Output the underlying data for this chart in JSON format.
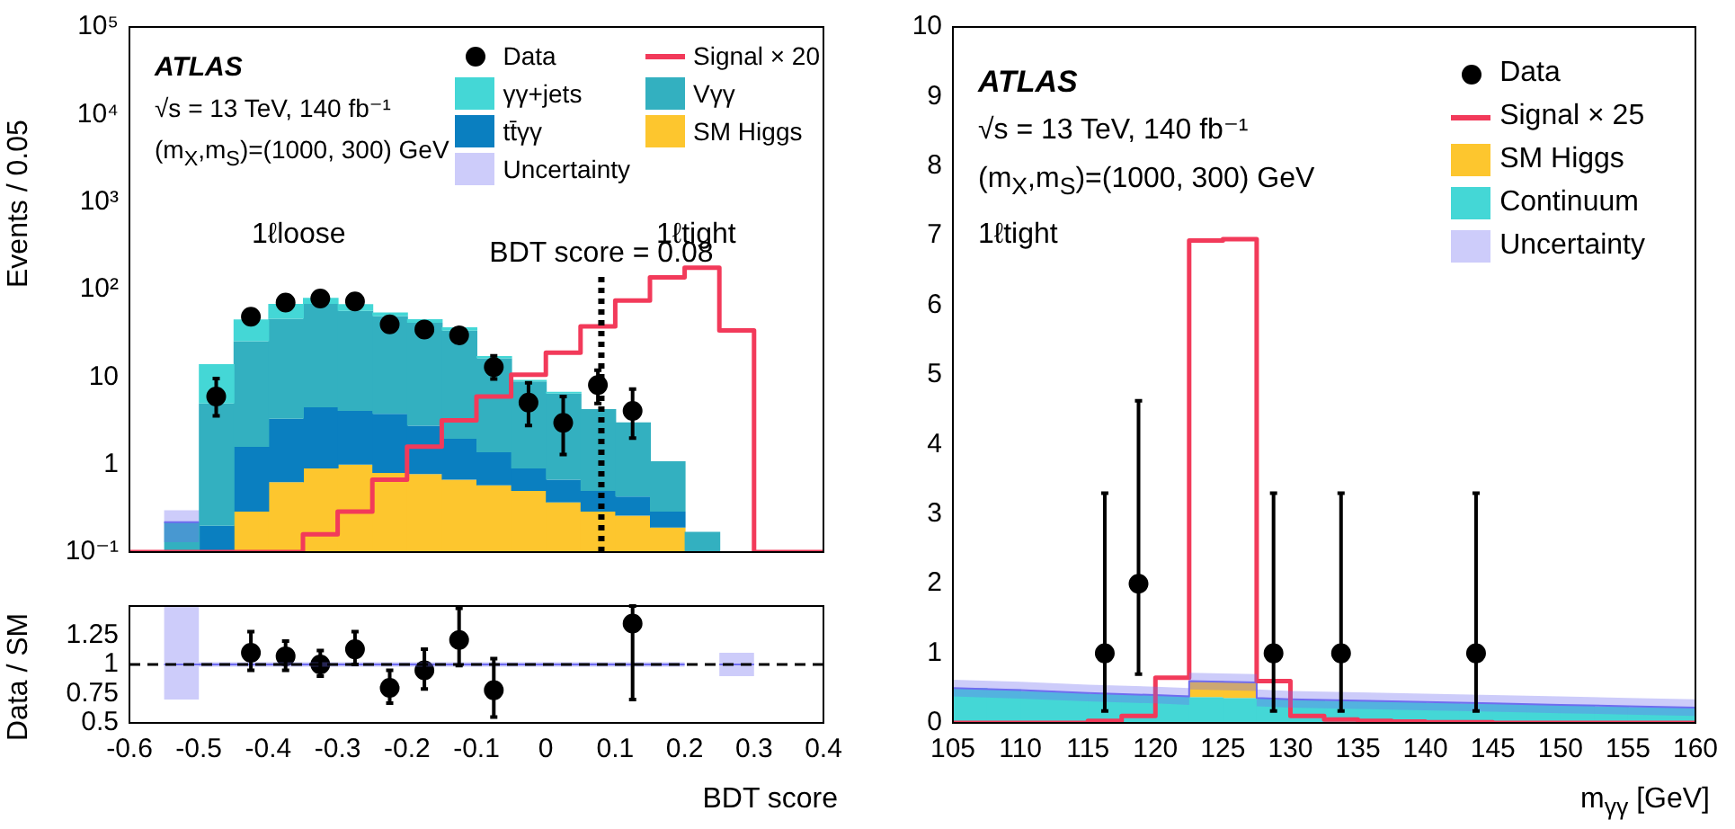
{
  "chart_data": [
    {
      "type": "bar",
      "x": [
        -0.525,
        -0.475,
        -0.425,
        -0.375,
        -0.325,
        -0.275,
        -0.225,
        -0.175,
        -0.125,
        -0.075,
        -0.025,
        0.025,
        0.075,
        0.125,
        0.175,
        0.225
      ],
      "stacked": true,
      "log": "y",
      "grid": false,
      "legend": "top right",
      "tick_labels": "y",
      "ylabel": "Events / 0.05",
      "xlim": [
        -0.6,
        0.4
      ],
      "xticks": [
        -0.6,
        -0.5,
        -0.4,
        -0.3,
        -0.2,
        -0.1,
        0,
        0.1,
        0.2,
        0.3,
        0.4
      ],
      "ylim": [
        0.1,
        100000
      ],
      "yticks": [
        {
          "value": 0.1,
          "label": "10⁻¹"
        },
        1,
        10,
        {
          "value": 100,
          "label": "10²"
        },
        {
          "value": 1000,
          "label": "10³"
        },
        {
          "value": 10000,
          "label": "10⁴"
        },
        {
          "value": 100000,
          "label": "10⁵"
        }
      ],
      "series": [
        {
          "name": "SM Higgs",
          "color": "#fdc62e",
          "values": [
            null,
            null,
            0.29,
            0.63,
            0.9,
            1.0,
            0.8,
            0.78,
            0.67,
            0.58,
            0.5,
            0.37,
            0.29,
            0.26,
            0.19,
            null
          ]
        },
        {
          "name": "tt̄γγ",
          "color": "#0a7fc0",
          "values": [
            null,
            0.2,
            1.3,
            2.7,
            3.6,
            3.1,
            3.0,
            2.0,
            1.3,
            0.8,
            0.4,
            0.3,
            0.21,
            0.17,
            0.1,
            null
          ]
        },
        {
          "name": "Vγγ",
          "color": "#33b0c0",
          "values": [
            0.22,
            4.8,
            24,
            43,
            64,
            53,
            46,
            39,
            32,
            15,
            8,
            5.8,
            3.8,
            2.6,
            0.8,
            0.17
          ]
        },
        {
          "name": "γγ+jets",
          "color": "#44d7d6",
          "values": [
            null,
            9,
            20,
            22,
            12,
            11,
            5,
            4,
            3,
            1,
            0.4,
            0.3,
            null,
            null,
            null,
            null
          ]
        },
        {
          "name": "Signal × 20",
          "type": "step",
          "color": "#f23a5a",
          "x": [
            -0.6,
            -0.55,
            -0.5,
            -0.45,
            -0.4,
            -0.35,
            -0.3,
            -0.25,
            -0.2,
            -0.15,
            -0.1,
            -0.05,
            0,
            0.05,
            0.1,
            0.15,
            0.2,
            0.25,
            0.3,
            0.35,
            0.4
          ],
          "values": [
            0.1,
            0.1,
            0.1,
            0.1,
            0.1,
            0.16,
            0.29,
            0.67,
            1.6,
            3.2,
            6.0,
            10.6,
            19,
            38,
            75,
            138,
            177,
            34,
            0.1,
            0.1,
            0.1
          ]
        },
        {
          "name": "Data",
          "type": "scatter",
          "marker": "circle",
          "color": "#000000",
          "x": [
            -0.475,
            -0.425,
            -0.375,
            -0.325,
            -0.275,
            -0.225,
            -0.175,
            -0.125,
            -0.075,
            -0.025,
            0.025,
            0.075,
            0.125
          ],
          "values": [
            6,
            49,
            71,
            79,
            73,
            40,
            35,
            30,
            13,
            5.1,
            3.0,
            8.1,
            4.1
          ],
          "errors": [
            [
              3.6,
              9.6
            ],
            null,
            null,
            null,
            null,
            null,
            null,
            null,
            [
              9.5,
              17.5
            ],
            [
              2.8,
              8.6
            ],
            [
              1.3,
              6.0
            ],
            [
              5.0,
              12
            ],
            [
              2.0,
              7.3
            ]
          ]
        },
        {
          "name": "Uncertainty",
          "type": "line",
          "color": "#6f6cf0",
          "x": [
            -0.55,
            -0.5
          ],
          "values": [
            0.22,
            0.22
          ],
          "lower": [
            0.13,
            0.13
          ],
          "upper": [
            0.3,
            0.3
          ]
        }
      ],
      "ref_lines": [
        {
          "axis": "x",
          "value": 0.08,
          "label": "BDT score = 0.08",
          "line_style": "dotted",
          "color": "#000000"
        }
      ],
      "annotations": [
        "ATLAS",
        "√s = 13 TeV, 140 fb⁻¹",
        "(m$_{X}$,m$_{S}$)=(1000, 300) GeV",
        "1ℓloose",
        "1ℓtight"
      ]
    },
    {
      "type": "scatter",
      "grid": false,
      "xlabel": "BDT score",
      "ylabel": "Data / SM",
      "xlim": [
        -0.6,
        0.4
      ],
      "xticks": [
        -0.6,
        -0.5,
        -0.4,
        -0.3,
        -0.2,
        -0.1,
        0,
        0.1,
        0.2,
        0.3,
        0.4
      ],
      "ylim": [
        0.5,
        1.5
      ],
      "yticks": [
        0.5,
        0.75,
        1,
        1.25
      ],
      "series": [
        {
          "color": "#000000",
          "marker": "circle",
          "x": [
            -0.425,
            -0.375,
            -0.325,
            -0.275,
            -0.225,
            -0.175,
            -0.125,
            -0.075,
            0.125
          ],
          "values": [
            1.1,
            1.07,
            1.0,
            1.13,
            0.8,
            0.95,
            1.21,
            0.78,
            1.35
          ],
          "errors": [
            [
              0.95,
              1.28
            ],
            [
              0.95,
              1.2
            ],
            [
              0.9,
              1.12
            ],
            [
              1.0,
              1.28
            ],
            [
              0.67,
              0.95
            ],
            [
              0.79,
              1.13
            ],
            [
              0.99,
              1.48
            ],
            [
              0.55,
              1.05
            ],
            [
              0.7,
              1.5
            ]
          ]
        },
        {
          "type": "line",
          "color": "#6f6cf0",
          "x": [
            -0.55,
            -0.5,
            -0.5,
            0.2,
            0.225,
            0.25,
            0.3
          ],
          "values": [
            1,
            1,
            1,
            1,
            null,
            1,
            1
          ],
          "lower": [
            0.7,
            0.7,
            0.98,
            0.98,
            null,
            0.9,
            0.9
          ],
          "upper": [
            1.5,
            1.5,
            1.02,
            1.02,
            null,
            1.1,
            1.1
          ]
        }
      ],
      "ref_lines": [
        {
          "axis": "y",
          "value": 1,
          "line_style": "dashed",
          "color": "#000000"
        }
      ]
    },
    {
      "type": "bar",
      "x": [
        106.25,
        108.75,
        111.25,
        113.75,
        116.25,
        118.75,
        121.25,
        123.75,
        126.25,
        128.75,
        131.25,
        133.75,
        136.25,
        138.75,
        141.25,
        143.75,
        146.25,
        148.75,
        151.25,
        153.75,
        156.25,
        158.75
      ],
      "stacked": true,
      "grid": false,
      "legend": "top right",
      "xlabel": "m$_{γγ}$ [GeV]",
      "xlim": [
        105,
        160
      ],
      "xticks": [
        105,
        110,
        115,
        120,
        125,
        130,
        135,
        140,
        145,
        150,
        155,
        160
      ],
      "ylim": [
        0,
        10
      ],
      "yticks": [
        0,
        1,
        2,
        3,
        4,
        5,
        6,
        7,
        8,
        9,
        10
      ],
      "series": [
        {
          "name": "Continuum",
          "color": "#44d7d6",
          "values": [
            0.5,
            0.48,
            0.46,
            0.44,
            0.42,
            0.4,
            0.39,
            0.37,
            0.36,
            0.35,
            0.33,
            0.32,
            0.31,
            0.3,
            0.29,
            0.28,
            0.27,
            0.26,
            0.25,
            0.24,
            0.23,
            0.22
          ]
        },
        {
          "name": "SM Higgs",
          "color": "#fdc62e",
          "values": [
            null,
            null,
            null,
            null,
            null,
            null,
            null,
            0.23,
            0.23,
            null,
            null,
            null,
            null,
            null,
            null,
            null,
            null,
            null,
            null,
            null,
            null,
            null
          ]
        },
        {
          "name": "Signal × 25",
          "type": "step",
          "color": "#f23a5a",
          "x": [
            105,
            107.5,
            110,
            112.5,
            115,
            117.5,
            120,
            122.5,
            125,
            127.5,
            130,
            132.5,
            135,
            137.5,
            140,
            142.5,
            145,
            147.5,
            150,
            152.5,
            155,
            157.5,
            160
          ],
          "values": [
            0,
            0,
            0,
            0,
            0.03,
            0.1,
            0.65,
            6.93,
            6.95,
            0.6,
            0.1,
            0.05,
            0.03,
            0.02,
            0.01,
            0.01,
            0,
            0,
            0,
            0,
            0,
            0,
            0
          ]
        },
        {
          "name": "Data",
          "type": "scatter",
          "marker": "circle",
          "color": "#000000",
          "x": [
            116.25,
            118.75,
            128.75,
            133.75,
            143.75
          ],
          "values": [
            1,
            2,
            1,
            1,
            1
          ],
          "errors": [
            [
              0.17,
              3.3
            ],
            [
              0.7,
              4.63
            ],
            [
              0.17,
              3.3
            ],
            [
              0.17,
              3.3
            ],
            [
              0.17,
              3.3
            ]
          ]
        },
        {
          "name": "Uncertainty",
          "type": "line",
          "color": "#6f6cf0",
          "x": [
            105,
            110,
            115,
            120,
            122.5,
            122.5,
            127.5,
            127.5,
            130,
            135,
            140,
            145,
            150,
            155,
            160
          ],
          "values": [
            0.5,
            0.47,
            0.43,
            0.4,
            0.38,
            0.6,
            0.58,
            0.36,
            0.34,
            0.32,
            0.3,
            0.28,
            0.26,
            0.24,
            0.22
          ],
          "lower": [
            0.38,
            0.35,
            0.31,
            0.28,
            0.26,
            0.48,
            0.46,
            0.24,
            0.22,
            0.2,
            0.18,
            0.16,
            0.14,
            0.12,
            0.1
          ],
          "upper": [
            0.62,
            0.59,
            0.55,
            0.52,
            0.5,
            0.72,
            0.7,
            0.48,
            0.46,
            0.44,
            0.42,
            0.4,
            0.38,
            0.36,
            0.34
          ]
        }
      ],
      "annotations": [
        "ATLAS",
        "√s = 13 TeV, 140 fb⁻¹",
        "(m$_{X}$,m$_{S}$)=(1000, 300) GeV",
        "1ℓtight"
      ]
    }
  ]
}
